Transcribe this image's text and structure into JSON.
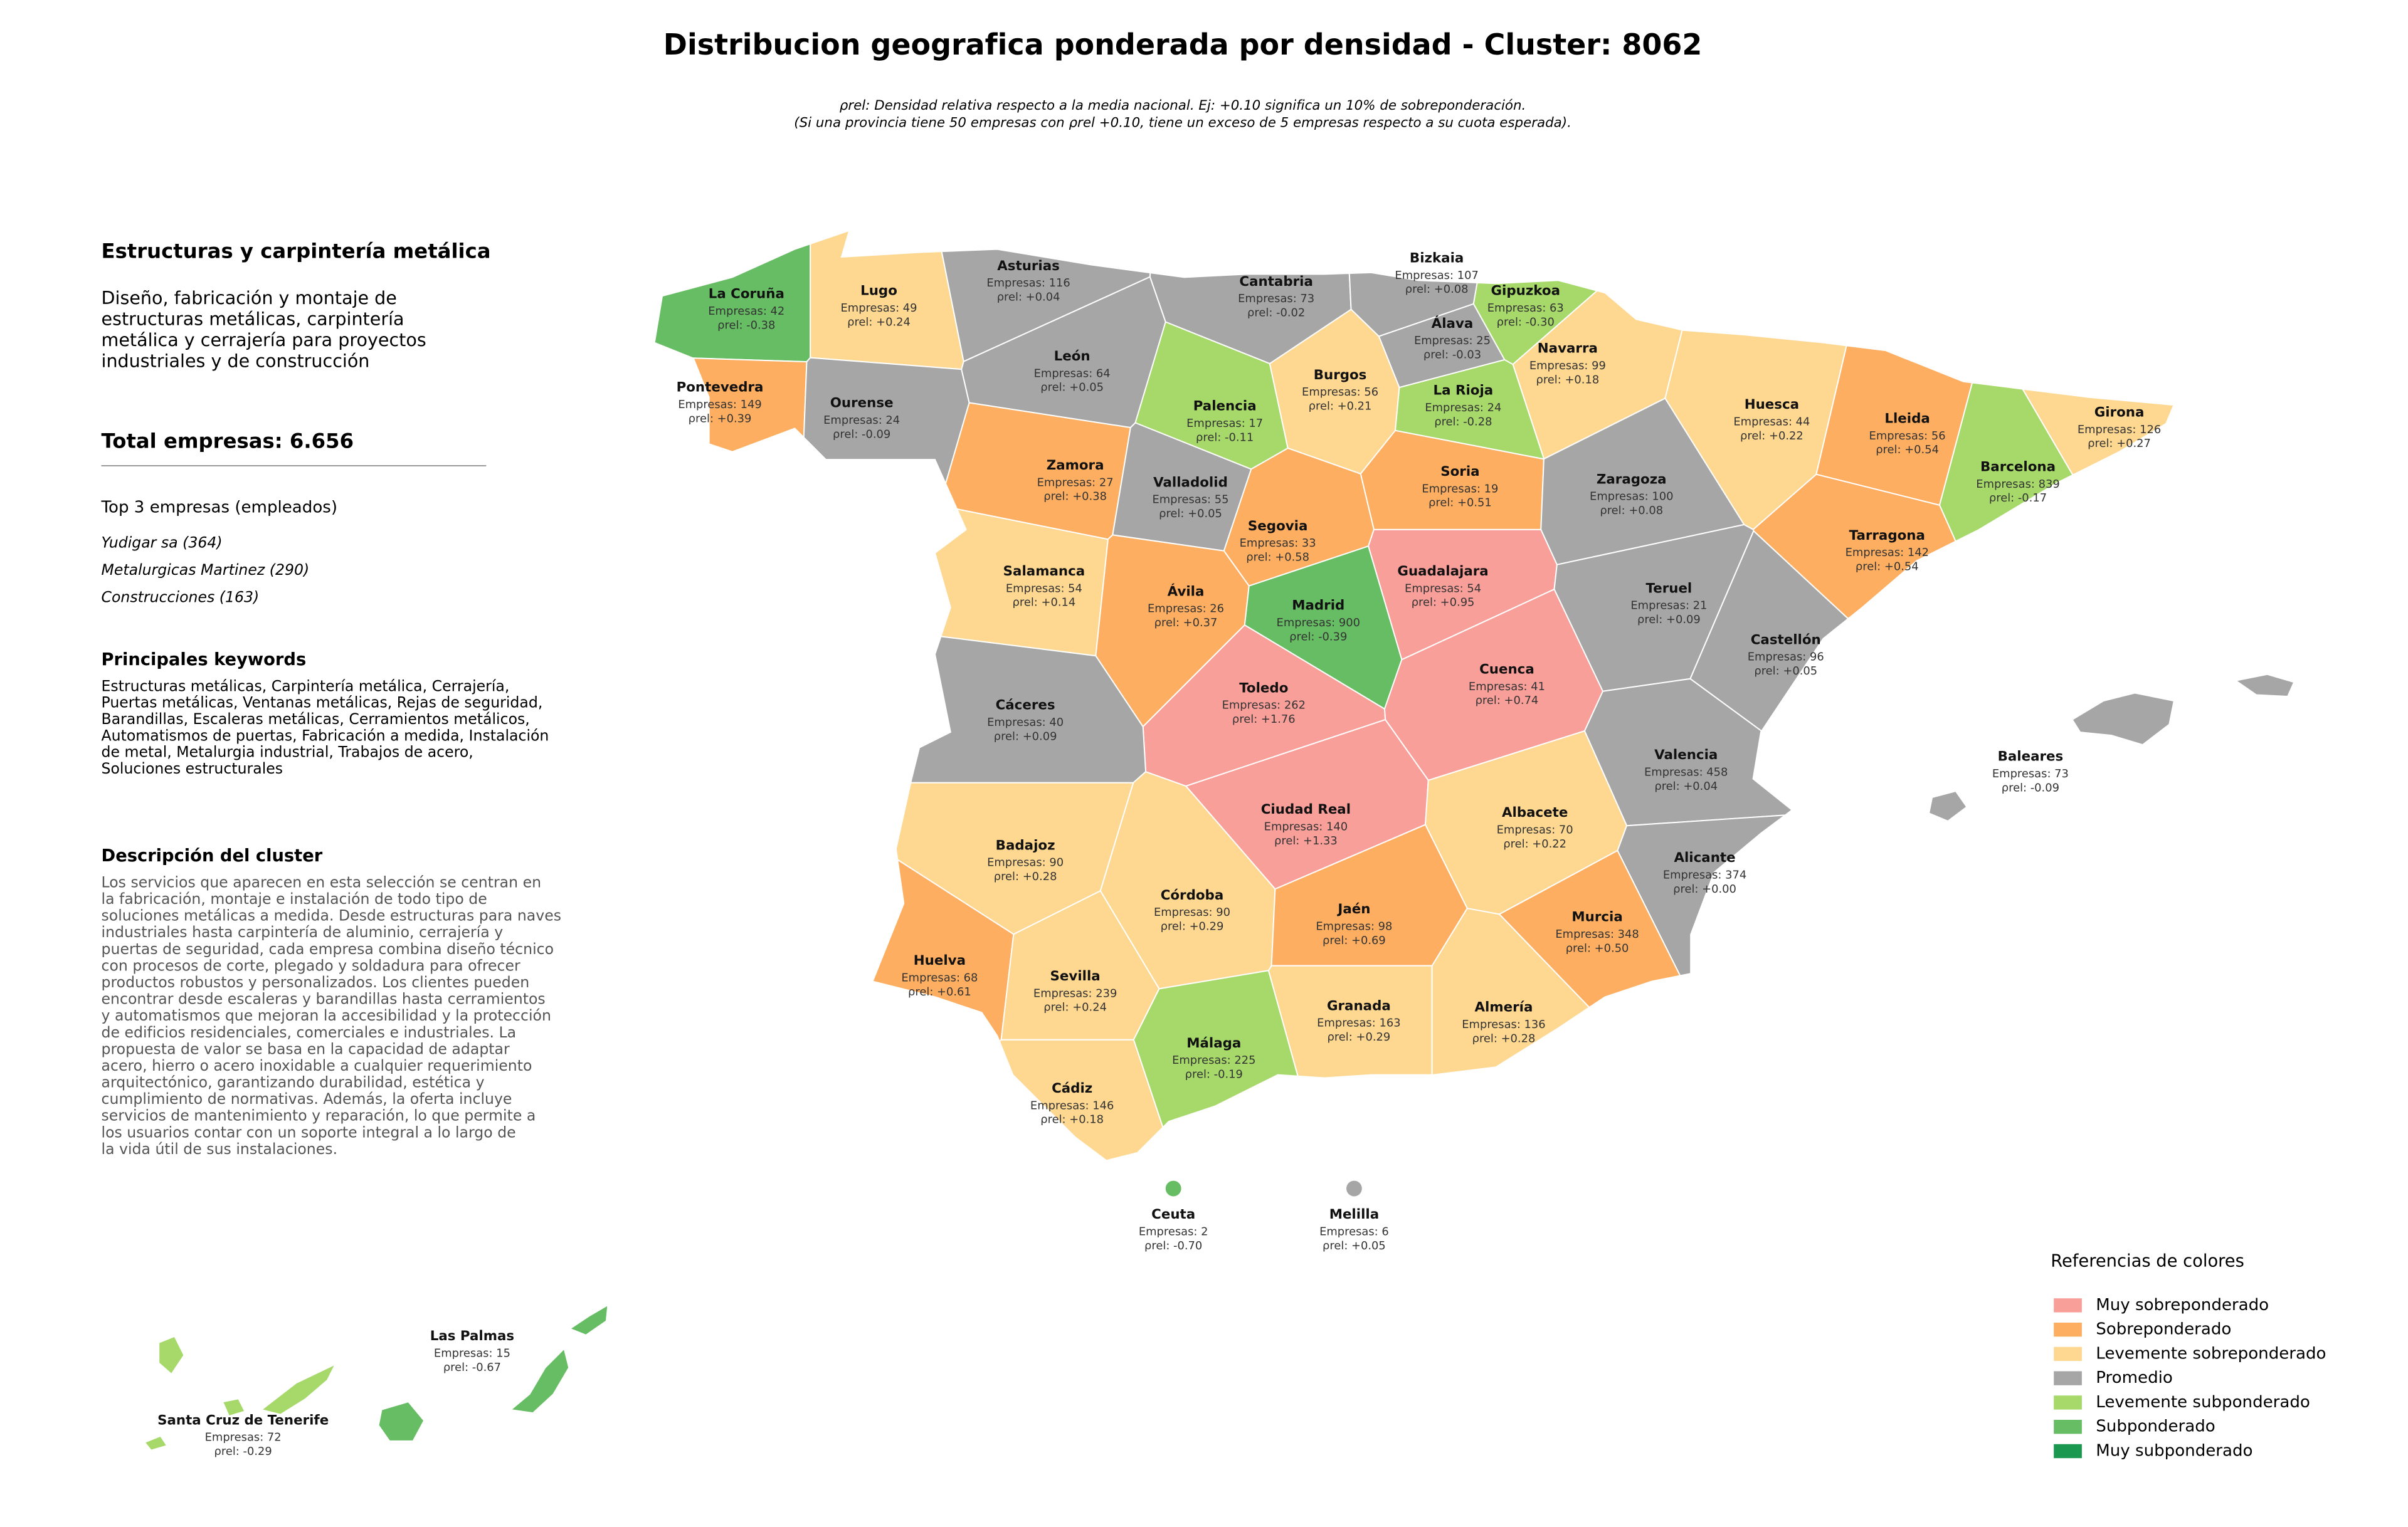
{
  "title": "Distribucion geografica ponderada por densidad - Cluster: 8062",
  "subtitle": [
    "ρrel: Densidad relativa respecto a la media nacional. Ej: +0.10 significa un 10% de sobreponderación.",
    "(Si una provincia tiene 50 empresas con ρrel +0.10, tiene un exceso de 5 empresas respecto a su cuota esperada)."
  ],
  "panel": {
    "heading": "Estructuras y carpintería metálica",
    "summary": [
      "Diseño, fabricación y montaje de",
      "estructuras metálicas, carpintería",
      "metálica y cerrajería para proyectos",
      "industriales y de construcción"
    ],
    "total": "Total empresas: 6.656",
    "top_title": "Top 3 empresas (empleados)",
    "top": [
      "Yudigar sa (364)",
      "Metalurgicas Martinez (290)",
      "Construcciones (163)"
    ],
    "keywords_title": "Principales keywords",
    "keywords": [
      "Estructuras metálicas, Carpintería metálica, Cerrajería,",
      "Puertas metálicas, Ventanas metálicas, Rejas de seguridad,",
      "Barandillas, Escaleras metálicas, Cerramientos metálicos,",
      "Automatismos de puertas, Fabricación a medida, Instalación",
      "de metal, Metalurgia industrial, Trabajos de acero,",
      "Soluciones estructurales"
    ],
    "description_title": "Descripción del cluster",
    "description": [
      "Los servicios que aparecen en esta selección se centran en",
      "la fabricación, montaje e instalación de todo tipo de",
      "soluciones metálicas a medida. Desde estructuras para naves",
      "industriales hasta carpintería de aluminio, cerrajería y",
      "puertas de seguridad, cada empresa combina diseño técnico",
      "con procesos de corte, plegado y soldadura para ofrecer",
      "productos robustos y personalizados. Los clientes pueden",
      "encontrar desde escaleras y barandillas hasta cerramientos",
      "y automatismos que mejoran la accesibilidad y la protección",
      "de edificios residenciales, comerciales e industriales. La",
      "propuesta de valor se basa en la capacidad de adaptar",
      "acero, hierro o acero inoxidable a cualquier requerimiento",
      "arquitectónico, garantizando durabilidad, estética y",
      "cumplimiento de normativas. Además, la oferta incluye",
      "servicios de mantenimiento y reparación, lo que permite a",
      "los usuarios contar con un soporte integral a lo largo de",
      "la vida útil de sus instalaciones."
    ]
  },
  "provinces": [
    {
      "name": "La Coruña",
      "companies": "Empresas: 42",
      "rho": "ρrel: -0.38",
      "color": "#66bd63"
    },
    {
      "name": "Lugo",
      "companies": "Empresas: 49",
      "rho": "ρrel: +0.24",
      "color": "#fed790"
    },
    {
      "name": "Asturias",
      "companies": "Empresas: 116",
      "rho": "ρrel: +0.04",
      "color": "#a6a6a6"
    },
    {
      "name": "Cantabria",
      "companies": "Empresas: 73",
      "rho": "ρrel: -0.02",
      "color": "#a6a6a6"
    },
    {
      "name": "Bizkaia",
      "companies": "Empresas: 107",
      "rho": "ρrel: +0.08",
      "color": "#a6a6a6"
    },
    {
      "name": "Gipuzkoa",
      "companies": "Empresas: 63",
      "rho": "ρrel: -0.30",
      "color": "#a6d96a"
    },
    {
      "name": "Álava",
      "companies": "Empresas: 25",
      "rho": "ρrel: -0.03",
      "color": "#a6a6a6"
    },
    {
      "name": "Navarra",
      "companies": "Empresas: 99",
      "rho": "ρrel: +0.18",
      "color": "#fed790"
    },
    {
      "name": "Pontevedra",
      "companies": "Empresas: 149",
      "rho": "ρrel: +0.39",
      "color": "#fdae61"
    },
    {
      "name": "Ourense",
      "companies": "Empresas: 24",
      "rho": "ρrel: -0.09",
      "color": "#a6a6a6"
    },
    {
      "name": "León",
      "companies": "Empresas: 64",
      "rho": "ρrel: +0.05",
      "color": "#a6a6a6"
    },
    {
      "name": "Palencia",
      "companies": "Empresas: 17",
      "rho": "ρrel: -0.11",
      "color": "#a6d96a"
    },
    {
      "name": "Burgos",
      "companies": "Empresas: 56",
      "rho": "ρrel: +0.21",
      "color": "#fed790"
    },
    {
      "name": "La Rioja",
      "companies": "Empresas: 24",
      "rho": "ρrel: -0.28",
      "color": "#a6d96a"
    },
    {
      "name": "Huesca",
      "companies": "Empresas: 44",
      "rho": "ρrel: +0.22",
      "color": "#fed790"
    },
    {
      "name": "Lleida",
      "companies": "Empresas: 56",
      "rho": "ρrel: +0.54",
      "color": "#fdae61"
    },
    {
      "name": "Girona",
      "companies": "Empresas: 126",
      "rho": "ρrel: +0.27",
      "color": "#fed790"
    },
    {
      "name": "Zamora",
      "companies": "Empresas: 27",
      "rho": "ρrel: +0.38",
      "color": "#fdae61"
    },
    {
      "name": "Valladolid",
      "companies": "Empresas: 55",
      "rho": "ρrel: +0.05",
      "color": "#a6a6a6"
    },
    {
      "name": "Soria",
      "companies": "Empresas: 19",
      "rho": "ρrel: +0.51",
      "color": "#fdae61"
    },
    {
      "name": "Zaragoza",
      "companies": "Empresas: 100",
      "rho": "ρrel: +0.08",
      "color": "#a6a6a6"
    },
    {
      "name": "Barcelona",
      "companies": "Empresas: 839",
      "rho": "ρrel: -0.17",
      "color": "#a6d96a"
    },
    {
      "name": "Segovia",
      "companies": "Empresas: 33",
      "rho": "ρrel: +0.58",
      "color": "#fdae61"
    },
    {
      "name": "Tarragona",
      "companies": "Empresas: 142",
      "rho": "ρrel: +0.54",
      "color": "#fdae61"
    },
    {
      "name": "Salamanca",
      "companies": "Empresas: 54",
      "rho": "ρrel: +0.14",
      "color": "#fed790"
    },
    {
      "name": "Guadalajara",
      "companies": "Empresas: 54",
      "rho": "ρrel: +0.95",
      "color": "#f99f9a"
    },
    {
      "name": "Ávila",
      "companies": "Empresas: 26",
      "rho": "ρrel: +0.37",
      "color": "#fdae61"
    },
    {
      "name": "Madrid",
      "companies": "Empresas: 900",
      "rho": "ρrel: -0.39",
      "color": "#66bd63"
    },
    {
      "name": "Teruel",
      "companies": "Empresas: 21",
      "rho": "ρrel: +0.09",
      "color": "#a6a6a6"
    },
    {
      "name": "Castellón",
      "companies": "Empresas: 96",
      "rho": "ρrel: +0.05",
      "color": "#a6a6a6"
    },
    {
      "name": "Toledo",
      "companies": "Empresas: 262",
      "rho": "ρrel: +1.76",
      "color": "#f99f9a"
    },
    {
      "name": "Cuenca",
      "companies": "Empresas: 41",
      "rho": "ρrel: +0.74",
      "color": "#f99f9a"
    },
    {
      "name": "Cáceres",
      "companies": "Empresas: 40",
      "rho": "ρrel: +0.09",
      "color": "#a6a6a6"
    },
    {
      "name": "Valencia",
      "companies": "Empresas: 458",
      "rho": "ρrel: +0.04",
      "color": "#a6a6a6"
    },
    {
      "name": "Ciudad Real",
      "companies": "Empresas: 140",
      "rho": "ρrel: +1.33",
      "color": "#f99f9a"
    },
    {
      "name": "Albacete",
      "companies": "Empresas: 70",
      "rho": "ρrel: +0.22",
      "color": "#fed790"
    },
    {
      "name": "Badajoz",
      "companies": "Empresas: 90",
      "rho": "ρrel: +0.28",
      "color": "#fed790"
    },
    {
      "name": "Alicante",
      "companies": "Empresas: 374",
      "rho": "ρrel: +0.00",
      "color": "#a6a6a6"
    },
    {
      "name": "Córdoba",
      "companies": "Empresas: 90",
      "rho": "ρrel: +0.29",
      "color": "#fed790"
    },
    {
      "name": "Jaén",
      "companies": "Empresas: 98",
      "rho": "ρrel: +0.69",
      "color": "#fdae61"
    },
    {
      "name": "Murcia",
      "companies": "Empresas: 348",
      "rho": "ρrel: +0.50",
      "color": "#fdae61"
    },
    {
      "name": "Huelva",
      "companies": "Empresas: 68",
      "rho": "ρrel: +0.61",
      "color": "#fdae61"
    },
    {
      "name": "Sevilla",
      "companies": "Empresas: 239",
      "rho": "ρrel: +0.24",
      "color": "#fed790"
    },
    {
      "name": "Granada",
      "companies": "Empresas: 163",
      "rho": "ρrel: +0.29",
      "color": "#fed790"
    },
    {
      "name": "Almería",
      "companies": "Empresas: 136",
      "rho": "ρrel: +0.28",
      "color": "#fed790"
    },
    {
      "name": "Málaga",
      "companies": "Empresas: 225",
      "rho": "ρrel: -0.19",
      "color": "#a6d96a"
    },
    {
      "name": "Cádiz",
      "companies": "Empresas: 146",
      "rho": "ρrel: +0.18",
      "color": "#fed790"
    },
    {
      "name": "Baleares",
      "companies": "Empresas: 73",
      "rho": "ρrel: -0.09",
      "color": "#a6a6a6"
    },
    {
      "name": "Ceuta",
      "companies": "Empresas: 2",
      "rho": "ρrel: -0.70",
      "color": "#66bd63"
    },
    {
      "name": "Melilla",
      "companies": "Empresas: 6",
      "rho": "ρrel: +0.05",
      "color": "#a6a6a6"
    },
    {
      "name": "Las Palmas",
      "companies": "Empresas: 15",
      "rho": "ρrel: -0.67",
      "color": "#66bd63"
    },
    {
      "name": "Santa Cruz de Tenerife",
      "companies": "Empresas: 72",
      "rho": "ρrel: -0.29",
      "color": "#a6d96a"
    }
  ],
  "legend": {
    "title": "Referencias de colores",
    "items": [
      {
        "name": "Muy sobreponderado",
        "color": "#f99f9a"
      },
      {
        "name": "Sobreponderado",
        "color": "#fdae61"
      },
      {
        "name": "Levemente sobreponderado",
        "color": "#fed790"
      },
      {
        "name": "Promedio",
        "color": "#a6a6a6"
      },
      {
        "name": "Levemente subponderado",
        "color": "#a6d96a"
      },
      {
        "name": "Subponderado",
        "color": "#66bd63"
      },
      {
        "name": "Muy subponderado",
        "color": "#1a9850"
      }
    ]
  }
}
